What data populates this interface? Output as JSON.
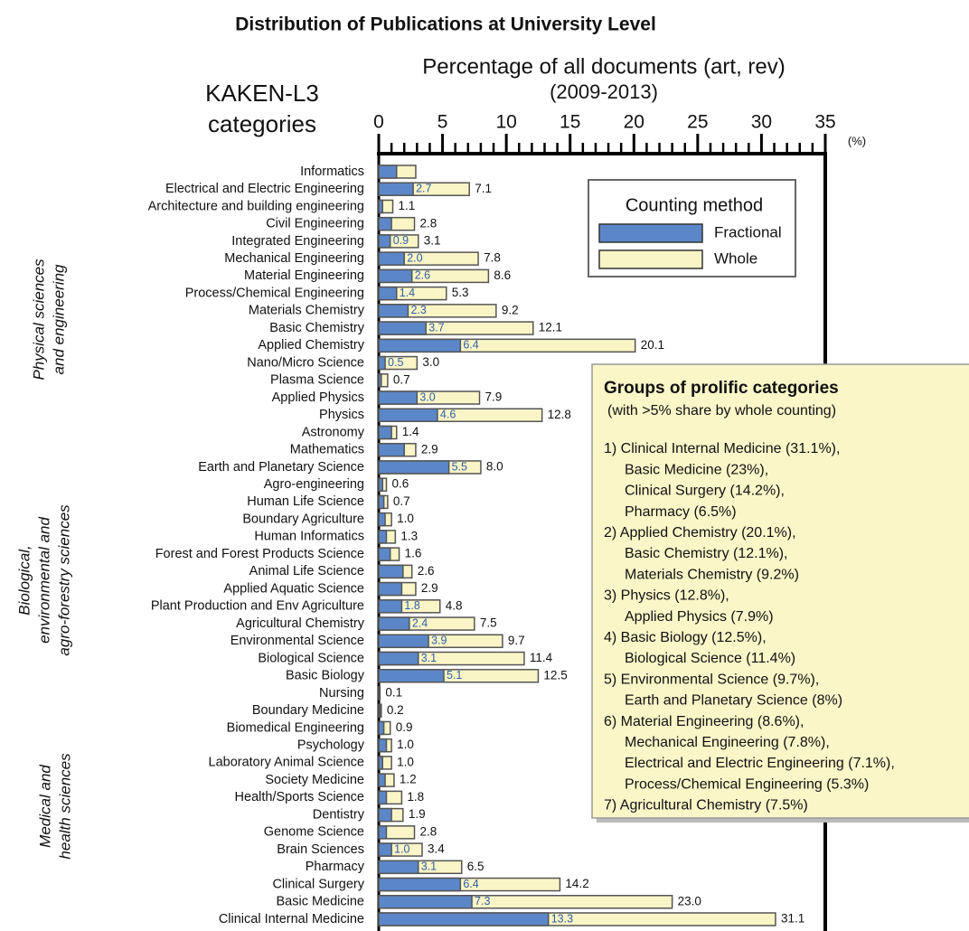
{
  "chart_data": {
    "type": "bar",
    "orientation": "horizontal",
    "title": "Distribution of Publications at University Level",
    "x_axis_label": [
      "Percentage of all documents (art, rev)",
      "(2009-2013)"
    ],
    "x_unit": "(%)",
    "y_axis_label": [
      "KAKEN-L3",
      "categories"
    ],
    "categories": [
      "Informatics",
      "Electrical and Electric Engineering",
      "Architecture and building engineering",
      "Civil Engineering",
      "Integrated Engineering",
      "Mechanical Engineering",
      "Material Engineering",
      "Process/Chemical Engineering",
      "Materials Chemistry",
      "Basic Chemistry",
      "Applied Chemistry",
      "Nano/Micro Science",
      "Plasma Science",
      "Applied Physics",
      "Physics",
      "Astronomy",
      "Mathematics",
      "Earth and Planetary Science",
      "Agro-engineering",
      "Human Life Science",
      "Boundary Agriculture",
      "Human Informatics",
      "Forest and Forest Products Science",
      "Animal Life Science",
      "Applied Aquatic Science",
      "Plant Production and Env Agriculture",
      "Agricultural Chemistry",
      "Environmental Science",
      "Biological Science",
      "Basic Biology",
      "Nursing",
      "Boundary Medicine",
      "Biomedical Engineering",
      "Psychology",
      "Laboratory Animal Science",
      "Society Medicine",
      "Health/Sports Science",
      "Dentistry",
      "Genome Science",
      "Brain Sciences",
      "Pharmacy",
      "Clinical Surgery",
      "Basic Medicine",
      "Clinical Internal Medicine"
    ],
    "series": [
      {
        "name": "Whole",
        "color": "#faf5c6",
        "values": [
          2.9,
          7.1,
          1.1,
          2.8,
          3.1,
          7.8,
          8.6,
          5.3,
          9.2,
          12.1,
          20.1,
          3.0,
          0.7,
          7.9,
          12.8,
          1.4,
          2.9,
          8.0,
          0.6,
          0.7,
          1.0,
          1.3,
          1.6,
          2.6,
          2.9,
          4.8,
          7.5,
          9.7,
          11.4,
          12.5,
          0.1,
          0.2,
          0.9,
          1.0,
          1.0,
          1.2,
          1.8,
          1.9,
          2.8,
          3.4,
          6.5,
          14.2,
          23.0,
          31.1
        ],
        "value_labels": [
          null,
          "7.1",
          "1.1",
          "2.8",
          "3.1",
          "7.8",
          "8.6",
          "5.3",
          "9.2",
          "12.1",
          "20.1",
          "3.0",
          "0.7",
          "7.9",
          "12.8",
          "1.4",
          "2.9",
          "8.0",
          "0.6",
          "0.7",
          "1.0",
          "1.3",
          "1.6",
          "2.6",
          "2.9",
          "4.8",
          "7.5",
          "9.7",
          "11.4",
          "12.5",
          "0.1",
          "0.2",
          "0.9",
          "1.0",
          "1.0",
          "1.2",
          "1.8",
          "1.9",
          "2.8",
          "3.4",
          "6.5",
          "14.2",
          "23.0",
          "31.1"
        ]
      },
      {
        "name": "Fractional",
        "color": "#5b87c8",
        "values": [
          1.4,
          2.7,
          0.3,
          1.0,
          0.9,
          2.0,
          2.6,
          1.4,
          2.3,
          3.7,
          6.4,
          0.5,
          0.2,
          3.0,
          4.6,
          1.0,
          2.0,
          5.5,
          0.3,
          0.4,
          0.5,
          0.6,
          0.9,
          1.9,
          1.8,
          1.8,
          2.4,
          3.9,
          3.1,
          5.1,
          0.05,
          0.1,
          0.4,
          0.6,
          0.3,
          0.5,
          0.6,
          1.0,
          0.6,
          1.0,
          3.1,
          6.4,
          7.3,
          13.3
        ],
        "value_labels": [
          null,
          "2.7",
          null,
          null,
          "0.9",
          "2.0",
          "2.6",
          "1.4",
          "2.3",
          "3.7",
          "6.4",
          "0.5",
          null,
          "3.0",
          "4.6",
          null,
          null,
          "5.5",
          null,
          null,
          null,
          null,
          null,
          null,
          null,
          "1.8",
          "2.4",
          "3.9",
          "3.1",
          "5.1",
          null,
          null,
          null,
          null,
          null,
          null,
          null,
          null,
          null,
          "1.0",
          "3.1",
          "6.4",
          "7.3",
          "13.3"
        ]
      }
    ],
    "xlim": [
      0,
      35
    ],
    "xticks": [
      0,
      5,
      10,
      15,
      20,
      25,
      30,
      35
    ],
    "xminorticks": [
      1,
      2,
      3,
      4,
      6,
      7,
      8,
      9,
      11,
      12,
      13,
      14,
      16,
      17,
      18,
      19,
      21,
      22,
      23,
      24,
      26,
      27,
      28,
      29,
      31,
      32,
      33,
      34
    ],
    "legend": {
      "title": "Counting method",
      "order": [
        1,
        0
      ],
      "position": "upper right"
    },
    "category_groups": [
      {
        "label": [
          "Physical sciences",
          "and engineering"
        ],
        "first": 0,
        "last": 17
      },
      {
        "label": [
          "Biological,",
          "environmental and",
          "agro-forestry sciences"
        ],
        "first": 18,
        "last": 29
      },
      {
        "label": [
          "Medical and",
          "health sciences"
        ],
        "first": 30,
        "last": 43
      }
    ],
    "annotation": {
      "title": "Groups of prolific categories",
      "subtitle": "(with >5% share by whole counting)",
      "groups": [
        [
          "1) Clinical Internal Medicine (31.1%),",
          "Basic Medicine (23%),",
          "Clinical Surgery (14.2%),",
          "Pharmacy (6.5%)"
        ],
        [
          "2) Applied Chemistry (20.1%),",
          "Basic Chemistry (12.1%),",
          "Materials Chemistry (9.2%)"
        ],
        [
          "3) Physics (12.8%),",
          "Applied Physics (7.9%)"
        ],
        [
          "4) Basic Biology (12.5%),",
          "Biological Science (11.4%)"
        ],
        [
          "5) Environmental Science (9.7%),",
          "Earth and Planetary Science (8%)"
        ],
        [
          "6) Material Engineering (8.6%),",
          "Mechanical Engineering (7.8%),",
          "Electrical and Electric Engineering (7.1%),",
          "Process/Chemical Engineering (5.3%)"
        ],
        [
          "7) Agricultural Chemistry (7.5%)"
        ]
      ]
    }
  }
}
